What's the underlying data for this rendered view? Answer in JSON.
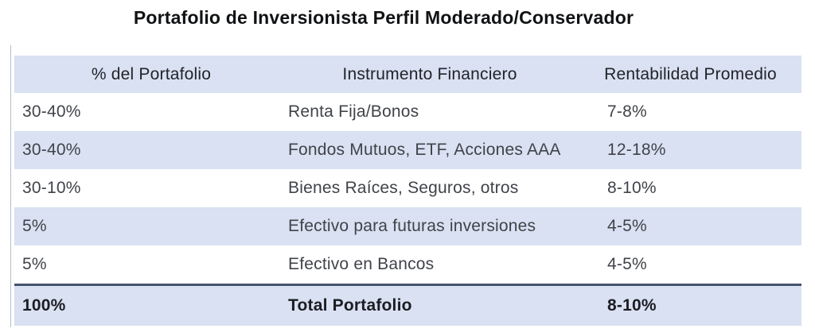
{
  "title": "Portafolio de Inversionista Perfil Moderado/Conservador",
  "table": {
    "columns": [
      "% del Portafolio",
      "Instrumento Financiero",
      "Rentabilidad Promedio"
    ],
    "rows": [
      {
        "pct": "30-40%",
        "instrument": "Renta Fija/Bonos",
        "return": "7-8%"
      },
      {
        "pct": "30-40%",
        "instrument": "Fondos Mutuos, ETF, Acciones AAA",
        "return": "12-18%"
      },
      {
        "pct": "30-10%",
        "instrument": "Bienes Raíces, Seguros, otros",
        "return": "8-10%"
      },
      {
        "pct": "5%",
        "instrument": "Efectivo para futuras inversiones",
        "return": "4-5%"
      },
      {
        "pct": "5%",
        "instrument": "Efectivo en Bancos",
        "return": "4-5%"
      }
    ],
    "total": {
      "pct": "100%",
      "instrument": "Total Portafolio",
      "return": "8-10%"
    }
  },
  "colors": {
    "band_blue": "#d9e1f2",
    "total_border": "#44546a",
    "left_rule": "#b7bec9"
  }
}
